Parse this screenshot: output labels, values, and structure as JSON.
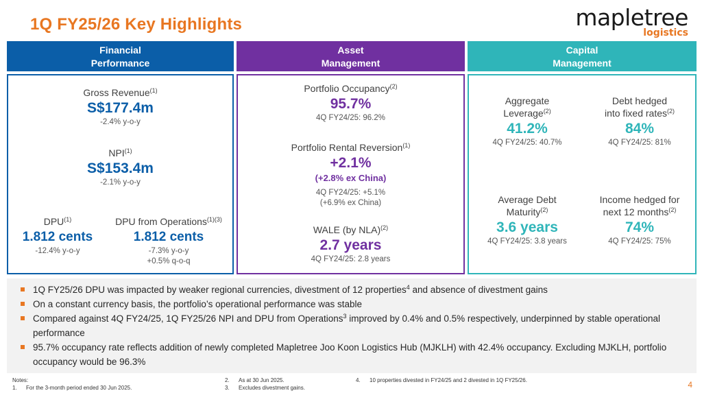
{
  "title": "1Q FY25/26 Key Highlights",
  "logo": {
    "main": "mapletree",
    "sub": "logistics"
  },
  "headers": {
    "financial": [
      "Financial",
      "Performance"
    ],
    "asset": [
      "Asset",
      "Management"
    ],
    "capital": [
      "Capital",
      "Management"
    ]
  },
  "financial": {
    "gross_revenue": {
      "label": "Gross Revenue",
      "sup": "(1)",
      "value": "S$177.4m",
      "change": "-2.4% y-o-y"
    },
    "npi": {
      "label": "NPI",
      "sup": "(1)",
      "value": "S$153.4m",
      "change": "-2.1% y-o-y"
    },
    "dpu": {
      "label": "DPU",
      "sup": "(1)",
      "value": "1.812 cents",
      "change": "-12.4% y-o-y"
    },
    "dpu_ops": {
      "label": "DPU from Operations",
      "sup": "(1)(3)",
      "value": "1.812 cents",
      "change1": "-7.3% y-o-y",
      "change2": "+0.5% q-o-q"
    }
  },
  "asset": {
    "occupancy": {
      "label": "Portfolio Occupancy",
      "sup": "(2)",
      "value": "95.7%",
      "prior": "4Q FY24/25: 96.2%"
    },
    "reversion": {
      "label": "Portfolio Rental Reversion",
      "sup": "(1)",
      "value": "+2.1%",
      "sub_value": "(+2.8% ex China)",
      "prior1": "4Q FY24/25: +5.1%",
      "prior2": "(+6.9% ex China)"
    },
    "wale": {
      "label": "WALE (by NLA)",
      "sup": "(2)",
      "value": "2.7 years",
      "prior": "4Q FY24/25: 2.8 years"
    }
  },
  "capital": {
    "leverage": {
      "label1": "Aggregate",
      "label2": "Leverage",
      "sup": "(2)",
      "value": "41.2%",
      "prior": "4Q FY24/25: 40.7%"
    },
    "debt_hedged": {
      "label1": "Debt hedged",
      "label2": "into fixed rates",
      "sup": "(2)",
      "value": "84%",
      "prior": "4Q FY24/25: 81%"
    },
    "debt_maturity": {
      "label1": "Average Debt",
      "label2": "Maturity",
      "sup": "(2)",
      "value": "3.6 years",
      "prior": "4Q FY24/25: 3.8 years"
    },
    "income_hedged": {
      "label1": "Income hedged for",
      "label2": "next 12 months",
      "sup": "(2)",
      "value": "74%",
      "prior": "4Q FY24/25: 75%"
    }
  },
  "bullets": [
    {
      "pre": "1Q FY25/26 DPU was impacted by weaker regional currencies, divestment of 12 properties",
      "sup": "4",
      "post": " and absence of divestment gains"
    },
    {
      "pre": "On a constant currency basis, the portfolio’s operational performance was stable",
      "sup": "",
      "post": ""
    },
    {
      "pre": "Compared against 4Q FY24/25, 1Q FY25/26 NPI and DPU from Operations",
      "sup": "3",
      "post": " improved by 0.4% and 0.5% respectively, underpinned by stable operational performance"
    },
    {
      "pre": "95.7% occupancy rate reflects addition of newly completed Mapletree Joo Koon Logistics Hub (MJKLH) with 42.4% occupancy. Excluding MJKLH, portfolio occupancy would be 96.3%",
      "sup": "",
      "post": ""
    }
  ],
  "notes": {
    "heading": "Notes:",
    "n1_num": "1.",
    "n1": "For the 3-month period ended 30 Jun 2025.",
    "n2_num": "2.",
    "n2": "As at 30 Jun 2025.",
    "n3_num": "3.",
    "n3": "Excludes divestment gains.",
    "n4_num": "4.",
    "n4": "10 properties divested in FY24/25 and 2 divested in 1Q FY25/26."
  },
  "page_number": "4",
  "colors": {
    "accent": "#e87722",
    "financial": "#0b5ea8",
    "asset": "#7030a0",
    "capital": "#2fb5b9"
  }
}
